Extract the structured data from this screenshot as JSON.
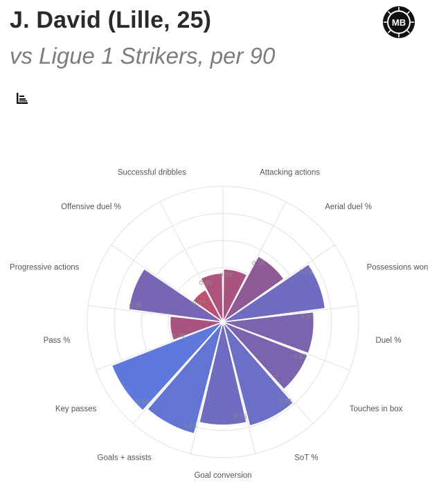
{
  "header": {
    "title": "J. David (Lille, 25)",
    "subtitle": "vs Ligue 1 Strikers, per 90",
    "logo_text": "MB"
  },
  "icons": {
    "menu": "bar-chart-menu-icon",
    "logo": "mb-logo-icon"
  },
  "colors": {
    "low": "#c0506e",
    "mid": "#8a5a98",
    "high": "#5b7ae0",
    "grid": "#e2e2e2",
    "text": "#2a2a2a",
    "subtitle": "#7c7c7c"
  },
  "chart_data": {
    "type": "polar-bar",
    "title": "",
    "rlim": [
      0,
      1
    ],
    "grid": true,
    "categories": [
      "Attacking actions",
      "Aerial duel %",
      "Possessions won",
      "Duel %",
      "Touches in box",
      "SoT %",
      "Goal conversion",
      "Goals + assists",
      "Key passes",
      "Pass %",
      "Progressive actions",
      "Offensive duel %",
      "Successful dribbles"
    ],
    "values": [
      0.39,
      0.55,
      0.76,
      0.67,
      0.67,
      0.79,
      0.76,
      0.85,
      0.88,
      0.39,
      0.7,
      0.27,
      0.36
    ],
    "value_labels": [
      "0.39",
      "0.55",
      "0.76",
      "0.67",
      "0.67",
      "0.79",
      "0.76",
      "0.85",
      "0.88",
      "0.39",
      "0.70",
      "0.27",
      "0.36"
    ]
  }
}
